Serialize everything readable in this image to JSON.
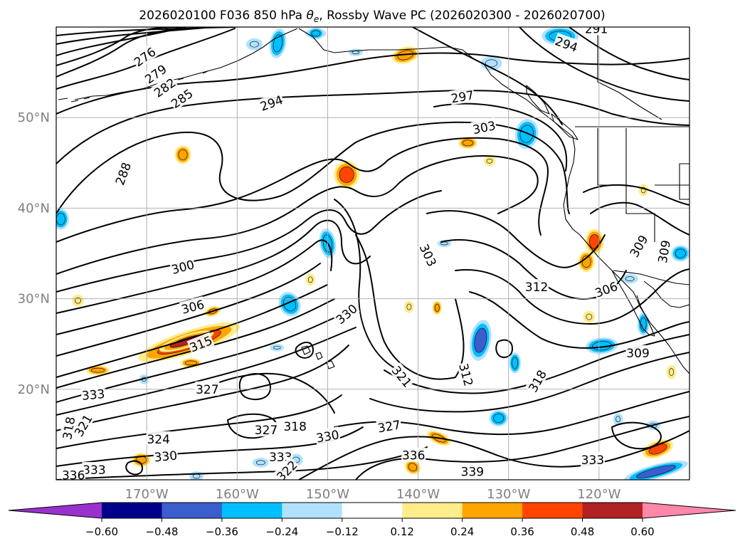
{
  "chart_data": {
    "type": "contour-map",
    "title": "2026020100 F036 850 hPa θe, Rossby Wave PC (2026020300 - 2026020700)",
    "title_parts": {
      "prefix": "2026020100 F036 850 hPa ",
      "theta": "θ",
      "sub": "e",
      "suffix": ", Rossby Wave PC (2026020300 - 2026020700)"
    },
    "map_extent": {
      "lon": [
        -180,
        -110
      ],
      "lat": [
        10,
        60
      ]
    },
    "lon_ticks": [
      {
        "value": -170,
        "label": "170°W"
      },
      {
        "value": -160,
        "label": "160°W"
      },
      {
        "value": -150,
        "label": "150°W"
      },
      {
        "value": -140,
        "label": "140°W"
      },
      {
        "value": -130,
        "label": "130°W"
      },
      {
        "value": -120,
        "label": "120°W"
      }
    ],
    "lat_ticks": [
      {
        "value": 20,
        "label": "20°N"
      },
      {
        "value": 30,
        "label": "30°N"
      },
      {
        "value": 40,
        "label": "40°N"
      },
      {
        "value": 50,
        "label": "50°N"
      }
    ],
    "gridlines": true,
    "contour_variable": "850 hPa theta-e (K)",
    "contour_labels": [
      {
        "text": "276",
        "lon": -170.2,
        "lat": 56.7,
        "angle": -35
      },
      {
        "text": "279",
        "lon": -169.0,
        "lat": 54.8,
        "angle": -35
      },
      {
        "text": "282",
        "lon": -168.0,
        "lat": 53.3,
        "angle": -35
      },
      {
        "text": "285",
        "lon": -166.1,
        "lat": 52.1,
        "angle": -35
      },
      {
        "text": "288",
        "lon": -172.6,
        "lat": 43.8,
        "angle": -70
      },
      {
        "text": "294",
        "lon": -156.2,
        "lat": 51.6,
        "angle": -20
      },
      {
        "text": "294",
        "lon": -123.6,
        "lat": 58.1,
        "angle": 20
      },
      {
        "text": "291",
        "lon": -120.3,
        "lat": 59.8,
        "angle": 0
      },
      {
        "text": "297",
        "lon": -135.1,
        "lat": 52.3,
        "angle": -10
      },
      {
        "text": "303",
        "lon": -132.7,
        "lat": 48.9,
        "angle": -12
      },
      {
        "text": "300",
        "lon": -166.0,
        "lat": 33.5,
        "angle": -15
      },
      {
        "text": "306",
        "lon": -164.9,
        "lat": 29.1,
        "angle": -15
      },
      {
        "text": "315",
        "lon": -164.0,
        "lat": 25.0,
        "angle": -22
      },
      {
        "text": "330",
        "lon": -147.9,
        "lat": 28.3,
        "angle": -40
      },
      {
        "text": "303",
        "lon": -138.9,
        "lat": 34.8,
        "angle": 65
      },
      {
        "text": "312",
        "lon": -126.9,
        "lat": 31.3,
        "angle": 0
      },
      {
        "text": "306",
        "lon": -119.2,
        "lat": 31.0,
        "angle": -20
      },
      {
        "text": "309",
        "lon": -115.6,
        "lat": 35.8,
        "angle": -60
      },
      {
        "text": "309",
        "lon": -112.8,
        "lat": 35.2,
        "angle": -80
      },
      {
        "text": "309",
        "lon": -115.7,
        "lat": 24.0,
        "angle": 0
      },
      {
        "text": "321",
        "lon": -141.8,
        "lat": 21.4,
        "angle": 50
      },
      {
        "text": "312",
        "lon": -134.7,
        "lat": 21.6,
        "angle": 75
      },
      {
        "text": "318",
        "lon": -126.8,
        "lat": 20.9,
        "angle": -60
      },
      {
        "text": "333",
        "lon": -175.9,
        "lat": 19.4,
        "angle": -5
      },
      {
        "text": "327",
        "lon": -163.3,
        "lat": 20.0,
        "angle": 0
      },
      {
        "text": "318",
        "lon": -178.6,
        "lat": 15.7,
        "angle": -80
      },
      {
        "text": "321",
        "lon": -177.0,
        "lat": 16.0,
        "angle": -60
      },
      {
        "text": "324",
        "lon": -168.7,
        "lat": 14.5,
        "angle": 0
      },
      {
        "text": "327",
        "lon": -156.8,
        "lat": 15.5,
        "angle": 0
      },
      {
        "text": "318",
        "lon": -153.6,
        "lat": 15.9,
        "angle": 0
      },
      {
        "text": "330",
        "lon": -150.0,
        "lat": 14.8,
        "angle": -10
      },
      {
        "text": "327",
        "lon": -143.2,
        "lat": 15.9,
        "angle": -10
      },
      {
        "text": "330",
        "lon": -167.9,
        "lat": 12.6,
        "angle": -5
      },
      {
        "text": "333",
        "lon": -155.2,
        "lat": 12.5,
        "angle": 0
      },
      {
        "text": "336",
        "lon": -140.5,
        "lat": 12.7,
        "angle": 0
      },
      {
        "text": "339",
        "lon": -134.0,
        "lat": 10.9,
        "angle": 0
      },
      {
        "text": "333",
        "lon": -120.7,
        "lat": 12.2,
        "angle": 0
      },
      {
        "text": "333",
        "lon": -175.8,
        "lat": 11.1,
        "angle": 0
      },
      {
        "text": "336",
        "lon": -178.1,
        "lat": 10.5,
        "angle": 0
      },
      {
        "text": "322",
        "lon": -154.5,
        "lat": 11.0,
        "angle": -45
      }
    ],
    "shading_variable": "Rossby Wave PC",
    "shaded_regions": [
      {
        "lon": -165.3,
        "lat": 25.2,
        "rx": 4.6,
        "ry": 0.9,
        "rot": -18,
        "value": 0.42
      },
      {
        "lon": -165.6,
        "lat": 25.3,
        "rx": 2.4,
        "ry": 0.45,
        "rot": -18,
        "value": 0.5
      },
      {
        "lon": -147.9,
        "lat": 43.7,
        "rx": 1.0,
        "ry": 1.1,
        "rot": 0,
        "value": 0.45
      },
      {
        "lon": -120.5,
        "lat": 36.3,
        "rx": 0.7,
        "ry": 1.0,
        "rot": 0,
        "value": 0.4
      },
      {
        "lon": -121.4,
        "lat": 34.1,
        "rx": 0.6,
        "ry": 0.8,
        "rot": 0,
        "value": 0.28
      },
      {
        "lon": -113.5,
        "lat": 13.4,
        "rx": 1.3,
        "ry": 0.6,
        "rot": -20,
        "value": 0.4
      },
      {
        "lon": -141.4,
        "lat": 56.9,
        "rx": 1.1,
        "ry": 0.6,
        "rot": -15,
        "value": 0.3
      },
      {
        "lon": -175.4,
        "lat": 22.1,
        "rx": 0.9,
        "ry": 0.3,
        "rot": 0,
        "value": 0.26
      },
      {
        "lon": -166.0,
        "lat": 45.9,
        "rx": 0.6,
        "ry": 0.7,
        "rot": 0,
        "value": 0.3
      },
      {
        "lon": -137.7,
        "lat": 14.6,
        "rx": 1.0,
        "ry": 0.4,
        "rot": 25,
        "value": 0.3
      },
      {
        "lon": -140.6,
        "lat": 11.4,
        "rx": 0.6,
        "ry": 0.5,
        "rot": 30,
        "value": 0.28
      },
      {
        "lon": -165.1,
        "lat": 22.9,
        "rx": 0.8,
        "ry": 0.3,
        "rot": 0,
        "value": 0.26
      },
      {
        "lon": -162.7,
        "lat": 28.6,
        "rx": 0.6,
        "ry": 0.3,
        "rot": -20,
        "value": 0.26
      },
      {
        "lon": -151.9,
        "lat": 32.1,
        "rx": 0.3,
        "ry": 0.4,
        "rot": 0,
        "value": 0.2
      },
      {
        "lon": -141.0,
        "lat": 29.1,
        "rx": 0.3,
        "ry": 0.4,
        "rot": 0,
        "value": 0.2
      },
      {
        "lon": -137.9,
        "lat": 29.0,
        "rx": 0.3,
        "ry": 0.5,
        "rot": 0,
        "value": 0.24
      },
      {
        "lon": -134.5,
        "lat": 47.2,
        "rx": 0.7,
        "ry": 0.4,
        "rot": 0,
        "value": 0.24
      },
      {
        "lon": -132.1,
        "lat": 45.2,
        "rx": 0.4,
        "ry": 0.3,
        "rot": 0,
        "value": 0.2
      },
      {
        "lon": -177.6,
        "lat": 29.8,
        "rx": 0.4,
        "ry": 0.4,
        "rot": 0,
        "value": 0.2
      },
      {
        "lon": -170.6,
        "lat": 12.2,
        "rx": 0.7,
        "ry": 0.5,
        "rot": 0,
        "value": 0.26
      },
      {
        "lon": -121.1,
        "lat": 28.0,
        "rx": 0.4,
        "ry": 0.4,
        "rot": 0,
        "value": 0.2
      },
      {
        "lon": -112.0,
        "lat": 21.9,
        "rx": 0.3,
        "ry": 0.5,
        "rot": 0,
        "value": 0.2
      },
      {
        "lon": -115.1,
        "lat": 42.0,
        "rx": 0.3,
        "ry": 0.4,
        "rot": 0,
        "value": 0.2
      },
      {
        "lon": -150.0,
        "lat": 36.1,
        "rx": 0.6,
        "ry": 1.2,
        "rot": -10,
        "value": -0.3
      },
      {
        "lon": -133.1,
        "lat": 25.4,
        "rx": 0.8,
        "ry": 1.7,
        "rot": 10,
        "value": -0.4
      },
      {
        "lon": -119.7,
        "lat": 24.8,
        "rx": 1.3,
        "ry": 0.6,
        "rot": -5,
        "value": -0.3
      },
      {
        "lon": -128.0,
        "lat": 48.2,
        "rx": 0.9,
        "ry": 1.2,
        "rot": 10,
        "value": -0.3
      },
      {
        "lon": -124.3,
        "lat": 59.0,
        "rx": 1.5,
        "ry": 0.7,
        "rot": 0,
        "value": -0.3
      },
      {
        "lon": -179.5,
        "lat": 38.8,
        "rx": 0.6,
        "ry": 0.8,
        "rot": 0,
        "value": -0.3
      },
      {
        "lon": -113.7,
        "lat": 10.9,
        "rx": 2.8,
        "ry": 0.5,
        "rot": -15,
        "value": -0.45
      },
      {
        "lon": -111.0,
        "lat": 35.0,
        "rx": 0.7,
        "ry": 0.6,
        "rot": 0,
        "value": -0.3
      },
      {
        "lon": -115.1,
        "lat": 27.2,
        "rx": 0.4,
        "ry": 0.9,
        "rot": 0,
        "value": -0.25
      },
      {
        "lon": -129.3,
        "lat": 22.9,
        "rx": 0.4,
        "ry": 0.8,
        "rot": 0,
        "value": -0.25
      },
      {
        "lon": -131.1,
        "lat": 16.8,
        "rx": 0.7,
        "ry": 0.6,
        "rot": 0,
        "value": -0.3
      },
      {
        "lon": -154.2,
        "lat": 29.4,
        "rx": 0.8,
        "ry": 1.0,
        "rot": -30,
        "value": -0.25
      },
      {
        "lon": -158.1,
        "lat": 58.1,
        "rx": 0.6,
        "ry": 0.4,
        "rot": 0,
        "value": -0.2
      },
      {
        "lon": -131.9,
        "lat": 56.0,
        "rx": 0.8,
        "ry": 0.5,
        "rot": 0,
        "value": -0.2
      },
      {
        "lon": -116.6,
        "lat": 32.2,
        "rx": 0.6,
        "ry": 0.3,
        "rot": 0,
        "value": -0.2
      },
      {
        "lon": -117.9,
        "lat": 16.7,
        "rx": 0.3,
        "ry": 0.4,
        "rot": 0,
        "value": -0.2
      },
      {
        "lon": -114.0,
        "lat": 16.0,
        "rx": 0.5,
        "ry": 0.3,
        "rot": 0,
        "value": -0.2
      },
      {
        "lon": -170.3,
        "lat": 21.1,
        "rx": 0.3,
        "ry": 0.3,
        "rot": 0,
        "value": -0.2
      },
      {
        "lon": -157.4,
        "lat": 11.9,
        "rx": 0.6,
        "ry": 0.3,
        "rot": 0,
        "value": -0.2
      },
      {
        "lon": -153.5,
        "lat": 12.2,
        "rx": 0.5,
        "ry": 0.4,
        "rot": 0,
        "value": -0.2
      },
      {
        "lon": -164.5,
        "lat": 10.4,
        "rx": 0.5,
        "ry": 0.3,
        "rot": 0,
        "value": -0.2
      },
      {
        "lon": -151.3,
        "lat": 59.3,
        "rx": 0.8,
        "ry": 0.3,
        "rot": 0,
        "value": -0.2
      },
      {
        "lon": -155.6,
        "lat": 24.6,
        "rx": 0.5,
        "ry": 0.2,
        "rot": 0,
        "value": -0.2
      },
      {
        "lon": -137.1,
        "lat": 36.1,
        "rx": 0.5,
        "ry": 0.2,
        "rot": 0,
        "value": -0.15
      },
      {
        "lon": -146.9,
        "lat": 57.2,
        "rx": 0.5,
        "ry": 0.2,
        "rot": 0,
        "value": -0.15
      },
      {
        "lon": -155.5,
        "lat": 58.2,
        "rx": 0.6,
        "ry": 1.2,
        "rot": 10,
        "value": -0.3
      },
      {
        "lon": -151.3,
        "lat": 59.3,
        "rx": 0.6,
        "ry": 0.4,
        "rot": 0,
        "value": -0.25
      }
    ],
    "colorbar": {
      "orientation": "horizontal",
      "extend": "both",
      "bounds": [
        -0.72,
        -0.6,
        -0.48,
        -0.36,
        -0.24,
        -0.12,
        0.12,
        0.24,
        0.36,
        0.48,
        0.6,
        0.72
      ],
      "colors": [
        "#9932CC",
        "#00008B",
        "#3A5FCD",
        "#00BFFF",
        "#B0E2FF",
        "#FFFFFF",
        "#FFEC8B",
        "#FFA500",
        "#FF4500",
        "#B22222",
        "#FF88AA"
      ],
      "under_color": "#9932CC",
      "over_color": "#FF88AA",
      "tick_values": [
        -0.6,
        -0.48,
        -0.36,
        -0.24,
        -0.12,
        0.12,
        0.24,
        0.36,
        0.48,
        0.6
      ],
      "tick_labels": [
        "−0.60",
        "−0.48",
        "−0.36",
        "−0.24",
        "−0.12",
        "0.12",
        "0.24",
        "0.36",
        "0.48",
        "0.60"
      ]
    },
    "colors": {
      "contour": "#000000",
      "grid": "#A9A9A9",
      "axis_label": "#808080",
      "coastline": "#000000"
    }
  }
}
